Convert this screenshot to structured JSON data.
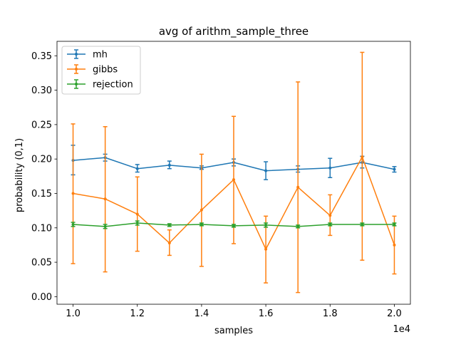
{
  "chart_data": {
    "type": "line",
    "title": "avg of arithm_sample_three",
    "xlabel": "samples",
    "ylabel": "probability (0,1)",
    "x_offset_label": "1e4",
    "x": [
      10000,
      11000,
      12000,
      13000,
      14000,
      15000,
      16000,
      17000,
      18000,
      19000,
      20000
    ],
    "x_ticks": [
      10000,
      12000,
      14000,
      16000,
      18000,
      20000
    ],
    "x_tick_labels": [
      "1.0",
      "1.2",
      "1.4",
      "1.6",
      "1.8",
      "2.0"
    ],
    "y_ticks": [
      0.0,
      0.05,
      0.1,
      0.15,
      0.2,
      0.25,
      0.3,
      0.35
    ],
    "y_tick_labels": [
      "0.00",
      "0.05",
      "0.10",
      "0.15",
      "0.20",
      "0.25",
      "0.30",
      "0.35"
    ],
    "xlim": [
      9500,
      20500
    ],
    "ylim": [
      -0.011,
      0.371
    ],
    "grid": false,
    "legend_position": "top-left",
    "series": [
      {
        "name": "mh",
        "color": "#1f77b4",
        "values": [
          0.198,
          0.202,
          0.186,
          0.191,
          0.187,
          0.195,
          0.183,
          0.185,
          0.187,
          0.195,
          0.185
        ],
        "err_low": [
          0.177,
          0.197,
          0.181,
          0.186,
          0.185,
          0.19,
          0.17,
          0.181,
          0.173,
          0.187,
          0.181
        ],
        "err_high": [
          0.22,
          0.207,
          0.192,
          0.197,
          0.19,
          0.2,
          0.196,
          0.19,
          0.201,
          0.204,
          0.189
        ]
      },
      {
        "name": "gibbs",
        "color": "#ff7f0e",
        "values": [
          0.15,
          0.142,
          0.12,
          0.078,
          0.126,
          0.17,
          0.069,
          0.159,
          0.118,
          0.203,
          0.075
        ],
        "err_low": [
          0.048,
          0.036,
          0.066,
          0.06,
          0.044,
          0.077,
          0.02,
          0.006,
          0.089,
          0.053,
          0.033
        ],
        "err_high": [
          0.251,
          0.247,
          0.174,
          0.097,
          0.207,
          0.262,
          0.117,
          0.312,
          0.148,
          0.355,
          0.117
        ]
      },
      {
        "name": "rejection",
        "color": "#2ca02c",
        "values": [
          0.105,
          0.102,
          0.107,
          0.104,
          0.105,
          0.103,
          0.104,
          0.102,
          0.105,
          0.105,
          0.105
        ],
        "err_low": [
          0.102,
          0.099,
          0.104,
          0.102,
          0.103,
          0.101,
          0.101,
          0.1,
          0.103,
          0.103,
          0.103
        ],
        "err_high": [
          0.108,
          0.105,
          0.11,
          0.106,
          0.107,
          0.105,
          0.107,
          0.104,
          0.107,
          0.107,
          0.107
        ]
      }
    ]
  }
}
